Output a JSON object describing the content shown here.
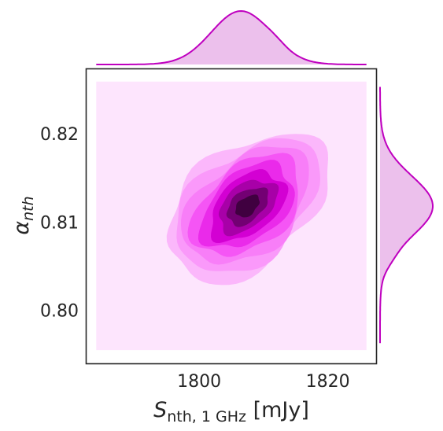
{
  "chart_data": {
    "type": "jointplot-kde",
    "x_axis": {
      "symbol": "S",
      "subscript": "nth, 1 GHz",
      "unit": "[mJy]",
      "ticks": [
        "1800",
        "1820"
      ],
      "tick_values": [
        1800,
        1820
      ],
      "range": [
        1782.5,
        1827.5
      ]
    },
    "y_axis": {
      "symbol": "α",
      "subscript": "nth",
      "ticks": [
        "0.80",
        "0.81",
        "0.82"
      ],
      "tick_values": [
        0.8,
        0.81,
        0.82
      ],
      "range": [
        0.794,
        0.8273
      ]
    },
    "joint_kde": {
      "center": [
        1807.5,
        0.8118
      ],
      "correlation": "positive",
      "levels": 10,
      "fill_extent": {
        "x": [
          1784,
          1826
        ],
        "y": [
          0.7955,
          0.8259
        ]
      }
    },
    "marginal_x": {
      "peak_x": 1806.5,
      "extent": [
        1784,
        1826
      ]
    },
    "marginal_y": {
      "peak_y": 0.8118,
      "extent": [
        0.7963,
        0.8253
      ]
    },
    "colors": {
      "line": "#bf00bf",
      "marginal_fill": "#ecc0ec",
      "contour_levels": [
        "#fde5fd",
        "#fbb7fb",
        "#fa99fa",
        "#f87ef8",
        "#f555f5",
        "#ea2aea",
        "#d300d3",
        "#a800a8",
        "#730073",
        "#400040"
      ],
      "axes_frame": "#262626",
      "background": "#ffffff"
    },
    "grid": false,
    "legend": "none"
  }
}
